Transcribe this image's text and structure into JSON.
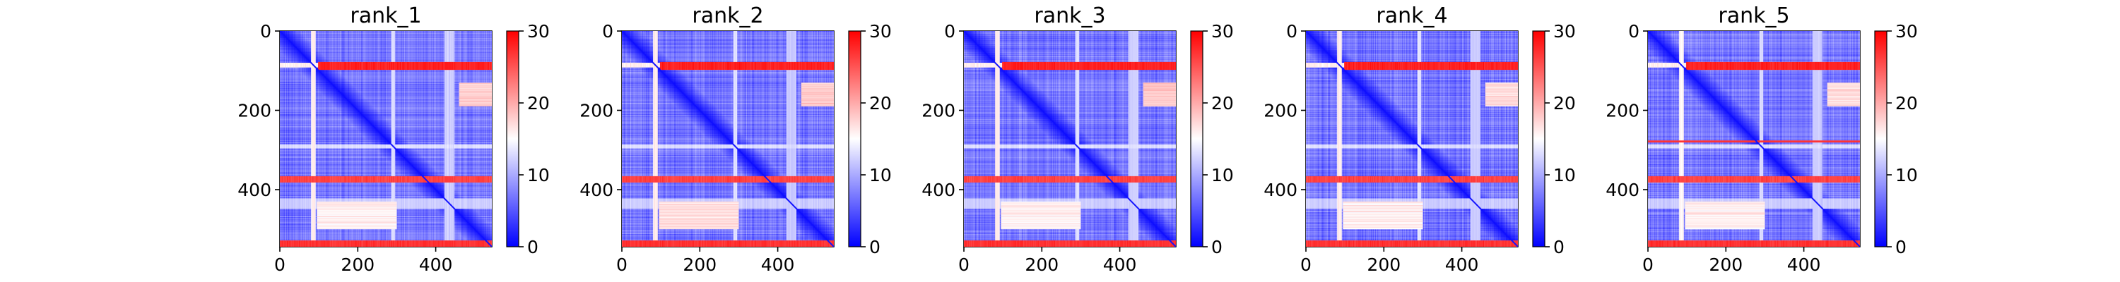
{
  "figure": {
    "panel_count": 5
  },
  "chart_data": [
    {
      "type": "heatmap",
      "title": "rank_1",
      "matrix_size": 544,
      "xlim": [
        0,
        544
      ],
      "ylim": [
        544,
        0
      ],
      "xticks": [
        0,
        200,
        400
      ],
      "yticks": [
        0,
        200,
        400
      ],
      "colorbar": {
        "min": 0,
        "max": 30,
        "ticks": [
          0,
          10,
          20,
          30
        ],
        "colormap": "bwr",
        "low_color": "#0000ff",
        "mid_color": "#ffffff",
        "high_color": "#ff0000"
      },
      "features": {
        "diagonal_value": 0,
        "background_value": 7,
        "high_bands": [
          {
            "from": 78,
            "to": 98,
            "value": 28,
            "start": 98
          },
          {
            "from": 366,
            "to": 382,
            "value": 26,
            "start": 0
          },
          {
            "from": 528,
            "to": 544,
            "value": 27,
            "start": 0
          }
        ],
        "light_stripes": [
          {
            "from": 80,
            "to": 92,
            "value": 16
          },
          {
            "from": 286,
            "to": 296,
            "value": 13
          },
          {
            "from": 422,
            "to": 448,
            "value": 12
          }
        ],
        "pale_patches": [
          {
            "rows": [
              130,
              190
            ],
            "cols": [
              460,
              544
            ],
            "value": 18
          },
          {
            "rows": [
              430,
              500
            ],
            "cols": [
              95,
              300
            ],
            "value": 16
          }
        ],
        "hot_line_row": null
      }
    },
    {
      "type": "heatmap",
      "title": "rank_2",
      "matrix_size": 544,
      "xlim": [
        0,
        544
      ],
      "ylim": [
        544,
        0
      ],
      "xticks": [
        0,
        200,
        400
      ],
      "yticks": [
        0,
        200,
        400
      ],
      "colorbar": {
        "min": 0,
        "max": 30,
        "ticks": [
          0,
          10,
          20,
          30
        ],
        "colormap": "bwr",
        "low_color": "#0000ff",
        "mid_color": "#ffffff",
        "high_color": "#ff0000"
      },
      "features": {
        "diagonal_value": 0,
        "background_value": 7,
        "high_bands": [
          {
            "from": 78,
            "to": 98,
            "value": 28,
            "start": 98
          },
          {
            "from": 366,
            "to": 382,
            "value": 26,
            "start": 0
          },
          {
            "from": 528,
            "to": 544,
            "value": 27,
            "start": 0
          }
        ],
        "light_stripes": [
          {
            "from": 80,
            "to": 92,
            "value": 16
          },
          {
            "from": 286,
            "to": 296,
            "value": 13
          },
          {
            "from": 422,
            "to": 448,
            "value": 12
          }
        ],
        "pale_patches": [
          {
            "rows": [
              130,
              190
            ],
            "cols": [
              460,
              544
            ],
            "value": 18
          },
          {
            "rows": [
              430,
              500
            ],
            "cols": [
              95,
              300
            ],
            "value": 17
          }
        ],
        "hot_line_row": null
      }
    },
    {
      "type": "heatmap",
      "title": "rank_3",
      "matrix_size": 544,
      "xlim": [
        0,
        544
      ],
      "ylim": [
        544,
        0
      ],
      "xticks": [
        0,
        200,
        400
      ],
      "yticks": [
        0,
        200,
        400
      ],
      "colorbar": {
        "min": 0,
        "max": 30,
        "ticks": [
          0,
          10,
          20,
          30
        ],
        "colormap": "bwr",
        "low_color": "#0000ff",
        "mid_color": "#ffffff",
        "high_color": "#ff0000"
      },
      "features": {
        "diagonal_value": 0,
        "background_value": 7,
        "high_bands": [
          {
            "from": 78,
            "to": 98,
            "value": 28,
            "start": 98
          },
          {
            "from": 366,
            "to": 382,
            "value": 26,
            "start": 0
          },
          {
            "from": 528,
            "to": 544,
            "value": 27,
            "start": 0
          }
        ],
        "light_stripes": [
          {
            "from": 80,
            "to": 92,
            "value": 16
          },
          {
            "from": 286,
            "to": 296,
            "value": 13
          },
          {
            "from": 422,
            "to": 448,
            "value": 12
          }
        ],
        "pale_patches": [
          {
            "rows": [
              130,
              190
            ],
            "cols": [
              460,
              544
            ],
            "value": 18
          },
          {
            "rows": [
              430,
              500
            ],
            "cols": [
              95,
              300
            ],
            "value": 16
          }
        ],
        "hot_line_row": null
      }
    },
    {
      "type": "heatmap",
      "title": "rank_4",
      "matrix_size": 544,
      "xlim": [
        0,
        544
      ],
      "ylim": [
        544,
        0
      ],
      "xticks": [
        0,
        200,
        400
      ],
      "yticks": [
        0,
        200,
        400
      ],
      "colorbar": {
        "min": 0,
        "max": 30,
        "ticks": [
          0,
          10,
          20,
          30
        ],
        "colormap": "bwr",
        "low_color": "#0000ff",
        "mid_color": "#ffffff",
        "high_color": "#ff0000"
      },
      "features": {
        "diagonal_value": 0,
        "background_value": 7,
        "high_bands": [
          {
            "from": 78,
            "to": 98,
            "value": 28,
            "start": 98
          },
          {
            "from": 366,
            "to": 382,
            "value": 26,
            "start": 0
          },
          {
            "from": 528,
            "to": 544,
            "value": 27,
            "start": 0
          }
        ],
        "light_stripes": [
          {
            "from": 80,
            "to": 92,
            "value": 16
          },
          {
            "from": 286,
            "to": 296,
            "value": 13
          },
          {
            "from": 422,
            "to": 448,
            "value": 12
          }
        ],
        "pale_patches": [
          {
            "rows": [
              130,
              190
            ],
            "cols": [
              460,
              544
            ],
            "value": 17
          },
          {
            "rows": [
              430,
              500
            ],
            "cols": [
              95,
              300
            ],
            "value": 16
          }
        ],
        "hot_line_row": null
      }
    },
    {
      "type": "heatmap",
      "title": "rank_5",
      "matrix_size": 544,
      "xlim": [
        0,
        544
      ],
      "ylim": [
        544,
        0
      ],
      "xticks": [
        0,
        200,
        400
      ],
      "yticks": [
        0,
        200,
        400
      ],
      "colorbar": {
        "min": 0,
        "max": 30,
        "ticks": [
          0,
          10,
          20,
          30
        ],
        "colormap": "bwr",
        "low_color": "#0000ff",
        "mid_color": "#ffffff",
        "high_color": "#ff0000"
      },
      "features": {
        "diagonal_value": 0,
        "background_value": 7,
        "high_bands": [
          {
            "from": 78,
            "to": 98,
            "value": 28,
            "start": 98
          },
          {
            "from": 366,
            "to": 382,
            "value": 26,
            "start": 0
          },
          {
            "from": 528,
            "to": 544,
            "value": 27,
            "start": 0
          }
        ],
        "light_stripes": [
          {
            "from": 80,
            "to": 92,
            "value": 16
          },
          {
            "from": 286,
            "to": 296,
            "value": 13
          },
          {
            "from": 422,
            "to": 448,
            "value": 12
          }
        ],
        "pale_patches": [
          {
            "rows": [
              130,
              190
            ],
            "cols": [
              460,
              544
            ],
            "value": 17
          },
          {
            "rows": [
              430,
              500
            ],
            "cols": [
              95,
              300
            ],
            "value": 16
          }
        ],
        "hot_line_row": 278
      }
    }
  ]
}
